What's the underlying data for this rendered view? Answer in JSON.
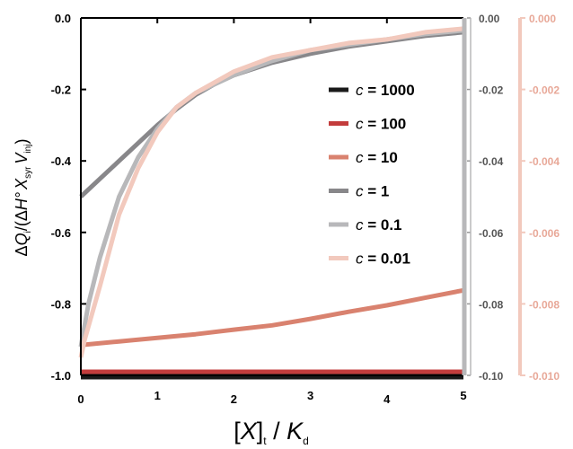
{
  "chart_data": {
    "type": "line",
    "xlabel": {
      "open": "[",
      "var": "X",
      "close": "]",
      "sub": "t",
      "slash": " / ",
      "var2": "K",
      "sub2": "d"
    },
    "ylabel": {
      "delta1": "Δ",
      "q": "Q",
      "i": "i",
      "paren": "/(Δ",
      "h": "H°",
      "x": "X",
      "syr": "syr",
      "v": "V",
      "inj": "inj",
      "close": ")"
    },
    "xlim": [
      0,
      5
    ],
    "ylim_left": [
      -1.0,
      0.0
    ],
    "ylim_right1": [
      -0.1,
      0.0
    ],
    "ylim_right2": [
      -0.01,
      0.0
    ],
    "x_ticks": [
      "0",
      "1",
      "2",
      "3",
      "4",
      "5"
    ],
    "y_ticks_left": [
      "0.0",
      "-0.2",
      "-0.4",
      "-0.6",
      "-0.8",
      "-1.0"
    ],
    "y_ticks_right1": [
      "0.00",
      "-0.02",
      "-0.04",
      "-0.06",
      "-0.08",
      "-0.10"
    ],
    "y_ticks_right2": [
      "0.000",
      "-0.002",
      "-0.004",
      "-0.006",
      "-0.008",
      "-0.010"
    ],
    "legend_placement": "right-center",
    "series": [
      {
        "name": "c = 1000",
        "label_c": "c",
        "label_val": " = 1000",
        "color": "#1a1a1a",
        "axis": "left",
        "x": [
          0,
          0.98,
          0.99,
          5
        ],
        "y": [
          -1.0,
          -1.0,
          -1.0,
          -1.0
        ]
      },
      {
        "name": "c = 100",
        "label_c": "c",
        "label_val": " = 100",
        "color": "#c33c3c",
        "axis": "left",
        "x": [
          0,
          1,
          2,
          3,
          4,
          5
        ],
        "y": [
          -0.99,
          -0.99,
          -0.99,
          -0.99,
          -0.99,
          -0.99
        ]
      },
      {
        "name": "c = 10",
        "label_c": "c",
        "label_val": " = 10",
        "color": "#d9826f",
        "axis": "left",
        "x": [
          0,
          0.5,
          1,
          1.5,
          2,
          2.5,
          3,
          3.5,
          4,
          4.5,
          5
        ],
        "y": [
          -0.915,
          -0.905,
          -0.895,
          -0.885,
          -0.872,
          -0.86,
          -0.842,
          -0.822,
          -0.804,
          -0.783,
          -0.762
        ]
      },
      {
        "name": "c = 1",
        "label_c": "c",
        "label_val": " = 1",
        "color": "#88878a",
        "axis": "left",
        "x": [
          0,
          0.25,
          0.5,
          0.75,
          1,
          1.25,
          1.5,
          1.75,
          2,
          2.5,
          3,
          3.5,
          4,
          4.5,
          5
        ],
        "y": [
          -0.5,
          -0.45,
          -0.4,
          -0.35,
          -0.3,
          -0.255,
          -0.215,
          -0.185,
          -0.16,
          -0.125,
          -0.1,
          -0.08,
          -0.065,
          -0.05,
          -0.04
        ]
      },
      {
        "name": "c = 0.1",
        "label_c": "c",
        "label_val": " = 0.1",
        "color": "#b8b8ba",
        "axis": "right1",
        "x": [
          0,
          0.1,
          0.25,
          0.5,
          0.75,
          1,
          1.25,
          1.5,
          2,
          2.5,
          3,
          3.5,
          4,
          4.5,
          5
        ],
        "y": [
          -0.092,
          -0.08,
          -0.067,
          -0.05,
          -0.039,
          -0.031,
          -0.025,
          -0.021,
          -0.016,
          -0.012,
          -0.009,
          -0.0075,
          -0.006,
          -0.0045,
          -0.0035
        ]
      },
      {
        "name": "c = 0.01",
        "label_c": "c",
        "label_val": " = 0.01",
        "color": "#f2c9bd",
        "axis": "right2",
        "x": [
          0,
          0.05,
          0.25,
          0.5,
          0.75,
          1,
          1.25,
          1.5,
          2,
          2.5,
          3,
          3.5,
          4,
          4.5,
          5
        ],
        "y": [
          -0.0095,
          -0.009,
          -0.0075,
          -0.0055,
          -0.0042,
          -0.0032,
          -0.0025,
          -0.0021,
          -0.0015,
          -0.0011,
          -0.0009,
          -0.0007,
          -0.0006,
          -0.0004,
          -0.0003
        ]
      }
    ]
  }
}
